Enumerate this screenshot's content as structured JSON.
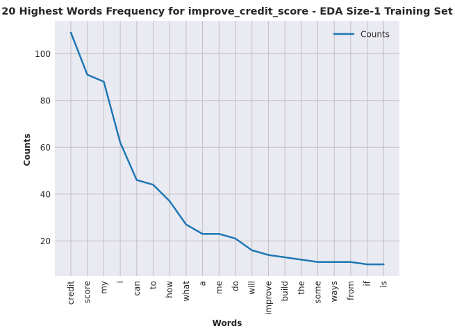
{
  "chart_data": {
    "type": "line",
    "title": "20 Highest Words Frequency for improve_credit_score - EDA Size-1 Training Set",
    "xlabel": "Words",
    "ylabel": "Counts",
    "categories": [
      "credit",
      "score",
      "my",
      "i",
      "can",
      "to",
      "how",
      "what",
      "a",
      "me",
      "do",
      "will",
      "improve",
      "build",
      "the",
      "some",
      "ways",
      "from",
      "if",
      "is"
    ],
    "series": [
      {
        "name": "Counts",
        "values": [
          109,
          91,
          88,
          62,
          46,
          44,
          37,
          27,
          23,
          23,
          21,
          16,
          14,
          13,
          12,
          11,
          11,
          11,
          10,
          10
        ]
      }
    ],
    "yticks": [
      20,
      40,
      60,
      80,
      100
    ],
    "ylim": [
      5,
      114
    ],
    "grid": true,
    "legend_position": "top-right",
    "colors": {
      "line": "#1f77b4",
      "plot_bg": "#eaeaf2",
      "grid": "#c0c0c0"
    }
  }
}
